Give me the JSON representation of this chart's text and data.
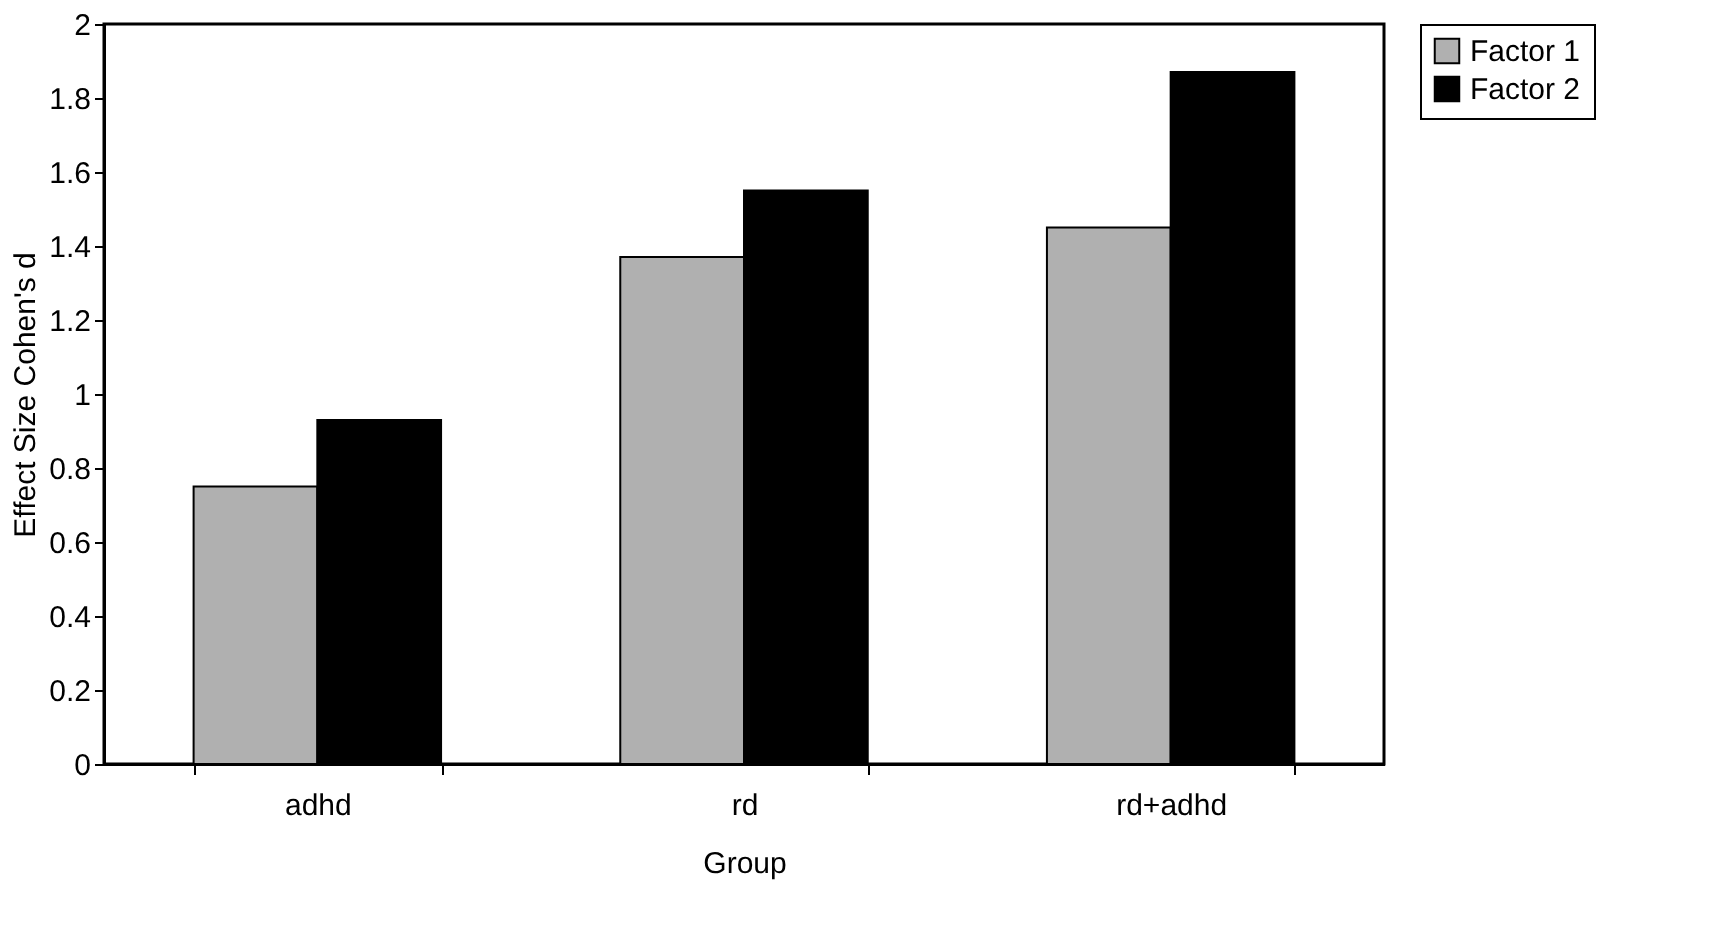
{
  "chart_data": {
    "type": "bar",
    "xlabel": "Group",
    "ylabel": "Effect Size Cohen's d",
    "categories": [
      "adhd",
      "rd",
      "rd+adhd"
    ],
    "series": [
      {
        "name": "Factor 1",
        "color": "#b0b0b0",
        "values": [
          0.75,
          1.37,
          1.45
        ]
      },
      {
        "name": "Factor 2",
        "color": "#000000",
        "values": [
          0.93,
          1.55,
          1.87
        ]
      }
    ],
    "ylim": [
      0,
      2
    ],
    "yticks": [
      0,
      0.2,
      0.4,
      0.6,
      0.8,
      1,
      1.2,
      1.4,
      1.6,
      1.8,
      2
    ],
    "grid": false,
    "legend": "right"
  }
}
